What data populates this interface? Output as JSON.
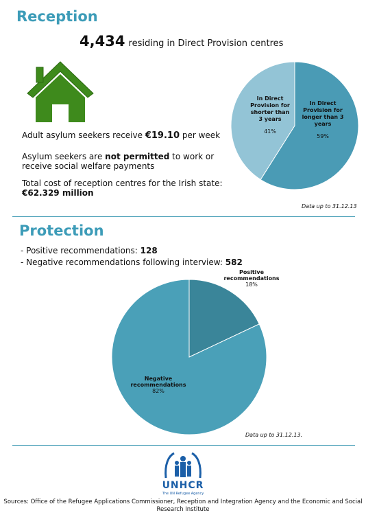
{
  "reception": {
    "heading": "Reception",
    "residents_count": "4,434",
    "residents_text": "residing in Direct Provision centres",
    "allowance_text": "Adult asylum seekers receive",
    "allowance_value": "€19.10",
    "allowance_unit": "per week",
    "work_text_start": "Asylum seekers are",
    "work_text_bold": "not permitted",
    "work_text_end": "to work or receive social welfare payments",
    "cost_text": "Total cost of reception centres for the Irish state:",
    "cost_value": "€62.329 million",
    "date_note": "Data up to 31.12.13"
  },
  "protection": {
    "heading": "Protection",
    "positive_text": "- Positive recommendations:",
    "positive_count": 128,
    "negative_text": "- Negative recommendations following interview:",
    "negative_count": 582,
    "date_note": "Data up to 31.12.13."
  },
  "chart_data": [
    {
      "type": "pie",
      "categories": [
        "In Direct Provision for longer than 3 years",
        "In Direct Provision for shorter than 3 years"
      ],
      "values": [
        59,
        41
      ],
      "value_labels": [
        "59%",
        "41%"
      ],
      "colors": [
        "#4a9bb5",
        "#93c4d6"
      ]
    },
    {
      "type": "pie",
      "categories": [
        "Positive recommendations",
        "Negative recommendations"
      ],
      "values": [
        18,
        82
      ],
      "value_labels": [
        "18%",
        "82%"
      ],
      "colors": [
        "#3a8599",
        "#4aa0b8"
      ]
    }
  ],
  "footer": {
    "logo": "UNHCR",
    "tagline": "The UN Refugee Agency",
    "sources": "Sources: Office of the Refugee Applications Commissioner, Reception and Integration Agency and the Economic and Social Research Institute"
  }
}
